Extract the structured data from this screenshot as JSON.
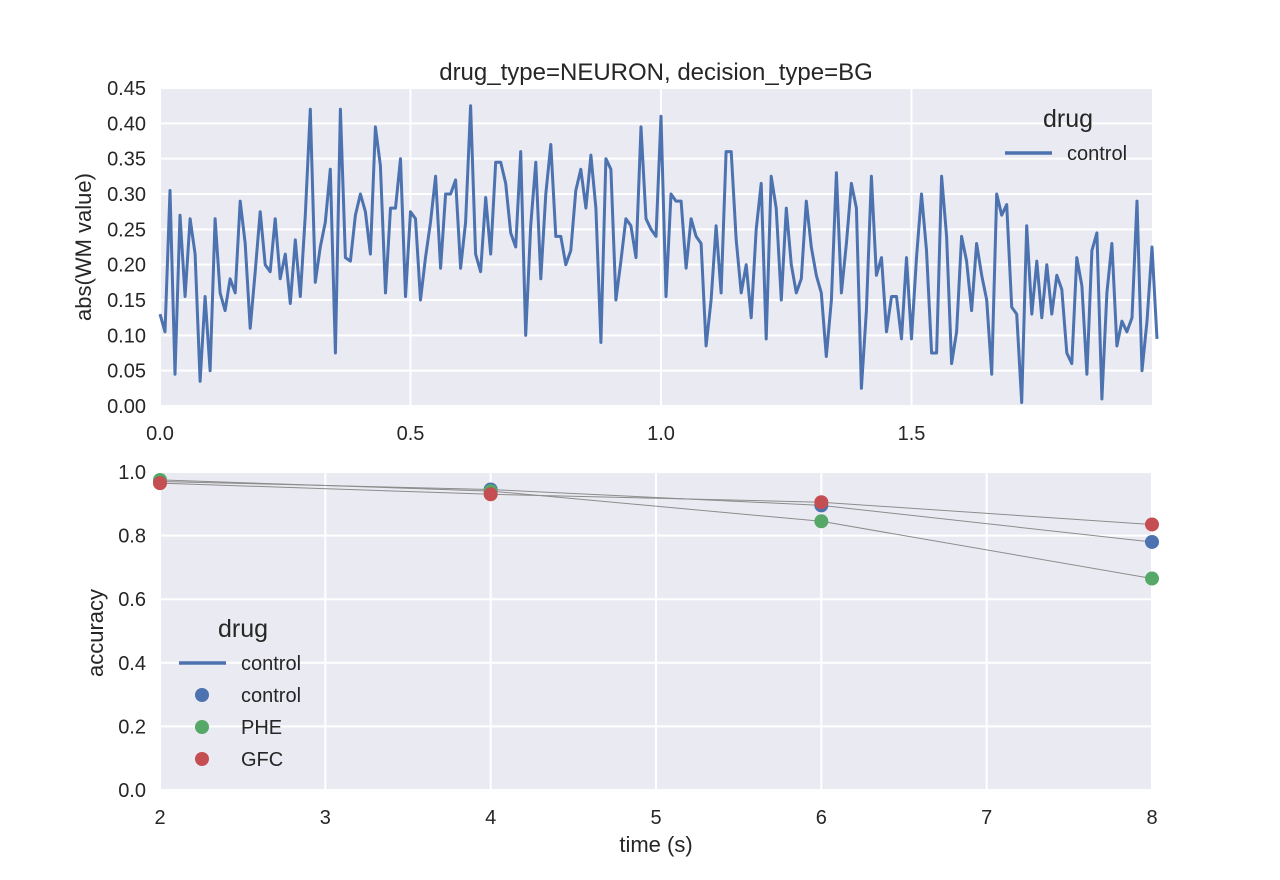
{
  "chart_data": [
    {
      "type": "line",
      "title": "drug_type=NEURON, decision_type=BG",
      "xlabel": "",
      "ylabel": "abs(WM value)",
      "xlim": [
        0.0,
        1.98
      ],
      "ylim": [
        0.0,
        0.45
      ],
      "xticks": [
        0.0,
        0.5,
        1.0,
        1.5
      ],
      "xtick_labels": [
        "0.0",
        "0.5",
        "1.0",
        "1.5"
      ],
      "yticks": [
        0.0,
        0.05,
        0.1,
        0.15,
        0.2,
        0.25,
        0.3,
        0.35,
        0.4,
        0.45
      ],
      "ytick_labels": [
        "0.00",
        "0.05",
        "0.10",
        "0.15",
        "0.20",
        "0.25",
        "0.30",
        "0.35",
        "0.40",
        "0.45"
      ],
      "grid": true,
      "legend": {
        "title": "drug",
        "placement": "top-right",
        "entries": [
          "control"
        ]
      },
      "x_step": 0.01,
      "series": [
        {
          "name": "control",
          "color": "#4c72b0",
          "values": [
            0.13,
            0.105,
            0.305,
            0.045,
            0.27,
            0.155,
            0.265,
            0.215,
            0.035,
            0.155,
            0.05,
            0.265,
            0.16,
            0.135,
            0.18,
            0.16,
            0.29,
            0.23,
            0.11,
            0.19,
            0.275,
            0.2,
            0.19,
            0.265,
            0.18,
            0.215,
            0.145,
            0.235,
            0.155,
            0.27,
            0.42,
            0.175,
            0.225,
            0.26,
            0.335,
            0.075,
            0.42,
            0.21,
            0.205,
            0.27,
            0.3,
            0.275,
            0.215,
            0.395,
            0.34,
            0.16,
            0.28,
            0.28,
            0.35,
            0.155,
            0.275,
            0.265,
            0.15,
            0.21,
            0.26,
            0.325,
            0.195,
            0.3,
            0.3,
            0.32,
            0.195,
            0.26,
            0.425,
            0.215,
            0.19,
            0.295,
            0.215,
            0.345,
            0.345,
            0.315,
            0.245,
            0.225,
            0.36,
            0.1,
            0.255,
            0.345,
            0.18,
            0.3,
            0.37,
            0.24,
            0.24,
            0.2,
            0.22,
            0.305,
            0.335,
            0.28,
            0.355,
            0.28,
            0.09,
            0.35,
            0.335,
            0.15,
            0.205,
            0.265,
            0.255,
            0.21,
            0.395,
            0.265,
            0.25,
            0.24,
            0.41,
            0.155,
            0.3,
            0.29,
            0.29,
            0.195,
            0.265,
            0.24,
            0.23,
            0.085,
            0.15,
            0.255,
            0.16,
            0.36,
            0.36,
            0.235,
            0.16,
            0.2,
            0.125,
            0.25,
            0.315,
            0.095,
            0.325,
            0.28,
            0.15,
            0.28,
            0.2,
            0.16,
            0.18,
            0.29,
            0.225,
            0.185,
            0.16,
            0.07,
            0.15,
            0.33,
            0.16,
            0.23,
            0.315,
            0.28,
            0.025,
            0.135,
            0.325,
            0.185,
            0.21,
            0.105,
            0.155,
            0.155,
            0.095,
            0.21,
            0.095,
            0.21,
            0.3,
            0.22,
            0.075,
            0.075,
            0.325,
            0.24,
            0.06,
            0.105,
            0.24,
            0.205,
            0.135,
            0.23,
            0.185,
            0.15,
            0.045,
            0.3,
            0.27,
            0.285,
            0.14,
            0.13,
            0.005,
            0.255,
            0.13,
            0.205,
            0.125,
            0.2,
            0.13,
            0.185,
            0.165,
            0.075,
            0.06,
            0.21,
            0.17,
            0.045,
            0.22,
            0.245,
            0.01,
            0.16,
            0.23,
            0.085,
            0.12,
            0.105,
            0.125,
            0.29,
            0.05,
            0.12,
            0.225,
            0.095
          ]
        }
      ]
    },
    {
      "type": "scatter",
      "title": "",
      "xlabel": "time (s)",
      "ylabel": "accuracy",
      "xlim": [
        2,
        8
      ],
      "ylim": [
        0.0,
        1.0
      ],
      "xticks": [
        2,
        3,
        4,
        5,
        6,
        7,
        8
      ],
      "xtick_labels": [
        "2",
        "3",
        "4",
        "5",
        "6",
        "7",
        "8"
      ],
      "yticks": [
        0.0,
        0.2,
        0.4,
        0.6,
        0.8,
        1.0
      ],
      "ytick_labels": [
        "0.0",
        "0.2",
        "0.4",
        "0.6",
        "0.8",
        "1.0"
      ],
      "grid": true,
      "legend": {
        "title": "drug",
        "placement": "lower-left",
        "entries": [
          {
            "label": "control",
            "marker": "line",
            "color": "#4c72b0"
          },
          {
            "label": "control",
            "marker": "dot",
            "color": "#4c72b0"
          },
          {
            "label": "PHE",
            "marker": "dot",
            "color": "#55a868"
          },
          {
            "label": "GFC",
            "marker": "dot",
            "color": "#c44e52"
          }
        ]
      },
      "x": [
        2,
        4,
        6,
        8
      ],
      "series": [
        {
          "name": "control",
          "color": "#4c72b0",
          "values": [
            0.97,
            0.945,
            0.895,
            0.78
          ]
        },
        {
          "name": "PHE",
          "color": "#55a868",
          "values": [
            0.975,
            0.94,
            0.845,
            0.665
          ]
        },
        {
          "name": "GFC",
          "color": "#c44e52",
          "values": [
            0.965,
            0.93,
            0.905,
            0.835
          ]
        }
      ],
      "connector_color": "#8c8c8c"
    }
  ]
}
